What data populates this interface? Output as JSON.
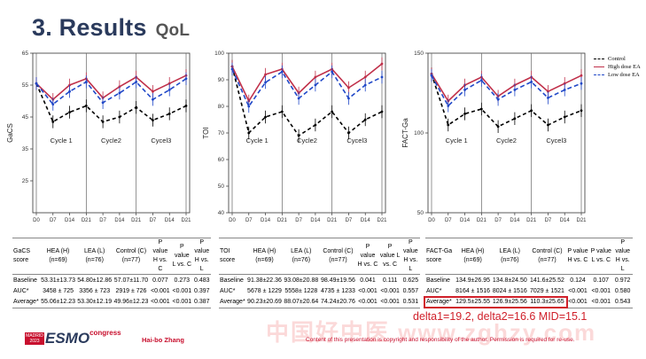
{
  "slide": {
    "title": "3. Results",
    "subtitle": "QoL"
  },
  "chart_data": [
    {
      "type": "line",
      "ylabel": "GaCS",
      "ylim": [
        15,
        65
      ],
      "yticks": [
        25,
        35,
        45,
        55,
        65
      ],
      "cycle_labels": [
        "Cycle 1",
        "Cycle2",
        "Cycel3"
      ],
      "x": [
        "D0",
        "D7",
        "D14",
        "D21",
        "D7",
        "D14",
        "D21",
        "D7",
        "D14",
        "D21"
      ],
      "series": [
        {
          "name": "Control",
          "color": "#000000",
          "dash": "4,3",
          "values": [
            55.5,
            43.5,
            46.5,
            48.5,
            43.5,
            45.0,
            48.0,
            44.0,
            46.0,
            48.5
          ]
        },
        {
          "name": "High dose EA",
          "color": "#c0304a",
          "dash": "",
          "values": [
            55.5,
            50.5,
            55.0,
            57.0,
            51.0,
            54.5,
            57.5,
            53.0,
            55.5,
            58.0
          ]
        },
        {
          "name": "Low dose EA",
          "color": "#2048c8",
          "dash": "5,3",
          "values": [
            55.5,
            49.0,
            53.0,
            56.0,
            49.5,
            52.5,
            56.0,
            50.5,
            53.5,
            57.0
          ]
        }
      ]
    },
    {
      "type": "line",
      "ylabel": "TOI",
      "ylim": [
        40,
        100
      ],
      "yticks": [
        40,
        50,
        60,
        70,
        80,
        90,
        100
      ],
      "cycle_labels": [
        "Cycle 1",
        "Cycle2",
        "Cycel3"
      ],
      "x": [
        "D0",
        "D7",
        "D14",
        "D21",
        "D7",
        "D14",
        "D21",
        "D7",
        "D14",
        "D21"
      ],
      "series": [
        {
          "name": "Control",
          "color": "#000000",
          "dash": "4,3",
          "values": [
            95,
            70,
            76,
            78,
            69,
            73,
            78,
            70,
            75,
            78
          ]
        },
        {
          "name": "High dose EA",
          "color": "#c0304a",
          "dash": "",
          "values": [
            95,
            82,
            92,
            94,
            85,
            91,
            94,
            87,
            91,
            96
          ]
        },
        {
          "name": "Low dose EA",
          "color": "#2048c8",
          "dash": "5,3",
          "values": [
            94,
            80,
            89,
            93,
            83,
            88,
            93,
            83,
            88,
            91
          ]
        }
      ]
    },
    {
      "type": "line",
      "ylabel": "FACT-Ga",
      "ylim": [
        50,
        150
      ],
      "yticks": [
        50,
        100,
        150
      ],
      "cycle_labels": [
        "Cycle 1",
        "Cycle2",
        "Cycel3"
      ],
      "x": [
        "D0",
        "D7",
        "D14",
        "D21",
        "D7",
        "D14",
        "D21",
        "D7",
        "D14",
        "D21"
      ],
      "series": [
        {
          "name": "Control",
          "color": "#000000",
          "dash": "4,3",
          "values": [
            137,
            105,
            112,
            115,
            104,
            109,
            114,
            105,
            110,
            114
          ]
        },
        {
          "name": "High dose EA",
          "color": "#c0304a",
          "dash": "",
          "values": [
            137,
            120,
            130,
            135,
            123,
            130,
            135,
            126,
            131,
            136
          ]
        },
        {
          "name": "Low dose EA",
          "color": "#2048c8",
          "dash": "5,3",
          "values": [
            136,
            117,
            127,
            133,
            121,
            127,
            132,
            122,
            127,
            131
          ]
        }
      ]
    }
  ],
  "legend": [
    "Control",
    "High dose EA",
    "Low dose EA"
  ],
  "tables": [
    {
      "headers": [
        "GaCS score",
        "HEA (H) (n=69)",
        "LEA (L) (n=76)",
        "Control (C) (n=77)",
        "P value H vs. C",
        "P value L vs. C",
        "P value H vs. L"
      ],
      "rows": [
        [
          "Baseline",
          "53.31±13.73",
          "54.80±12.86",
          "57.07±11.70",
          "0.077",
          "0.273",
          "0.483"
        ],
        [
          "AUC*",
          "3458 ± 725",
          "3356 ± 723",
          "2919 ± 726",
          "<0.001",
          "<0.001",
          "0.397"
        ],
        [
          "Average*",
          "55.06±12.23",
          "53.30±12.19",
          "49.96±12.23",
          "<0.001",
          "<0.001",
          "0.387"
        ]
      ]
    },
    {
      "headers": [
        "TOI score",
        "HEA (H) (n=69)",
        "LEA (L) (n=76)",
        "Control (C) (n=77)",
        "P value H vs. C",
        "P value L vs. C",
        "P value H vs. L"
      ],
      "rows": [
        [
          "Baseline",
          "91.38±22.36",
          "93.08±20.88",
          "98.49±19.56",
          "0.041",
          "0.111",
          "0.625"
        ],
        [
          "AUC*",
          "5678 ± 1229",
          "5558± 1228",
          "4735 ± 1233",
          "<0.001",
          "<0.001",
          "0.557"
        ],
        [
          "Average*",
          "90.23±20.69",
          "88.07±20.64",
          "74.24±20.76",
          "<0.001",
          "<0.001",
          "0.531"
        ]
      ]
    },
    {
      "headers": [
        "FACT-Ga score",
        "HEA (H) (n=69)",
        "LEA (L) (n=76)",
        "Control (C) (n=77)",
        "P value H vs. C",
        "P value L vs. C",
        "P value H vs. L"
      ],
      "rows": [
        [
          "Baseline",
          "134.9±26.95",
          "134.8±24.50",
          "141.6±25.52",
          "0.124",
          "0.107",
          "0.972"
        ],
        [
          "AUC*",
          "8164 ± 1516",
          "8024 ± 1516",
          "7029 ± 1521",
          "<0.001",
          "<0.001",
          "0.580"
        ],
        [
          "Average*",
          "129.5±25.55",
          "126.9±25.56",
          "110.3±25.65",
          "<0.001",
          "<0.001",
          "0.543"
        ]
      ]
    }
  ],
  "delta_note": "delta1=19.2, delta2=16.6  MID=15.1",
  "footer": {
    "logo_year_1": "MADRID",
    "logo_year_2": "2023",
    "logo_brand": "ESMO",
    "logo_congress": "congress",
    "presenter": "Hai-bo Zhang",
    "disclaimer": "Content of this presentation is copyright and responsibility of the author. Permission is required for re-use.",
    "watermark": "中国好中医 www.zghzy.com"
  }
}
